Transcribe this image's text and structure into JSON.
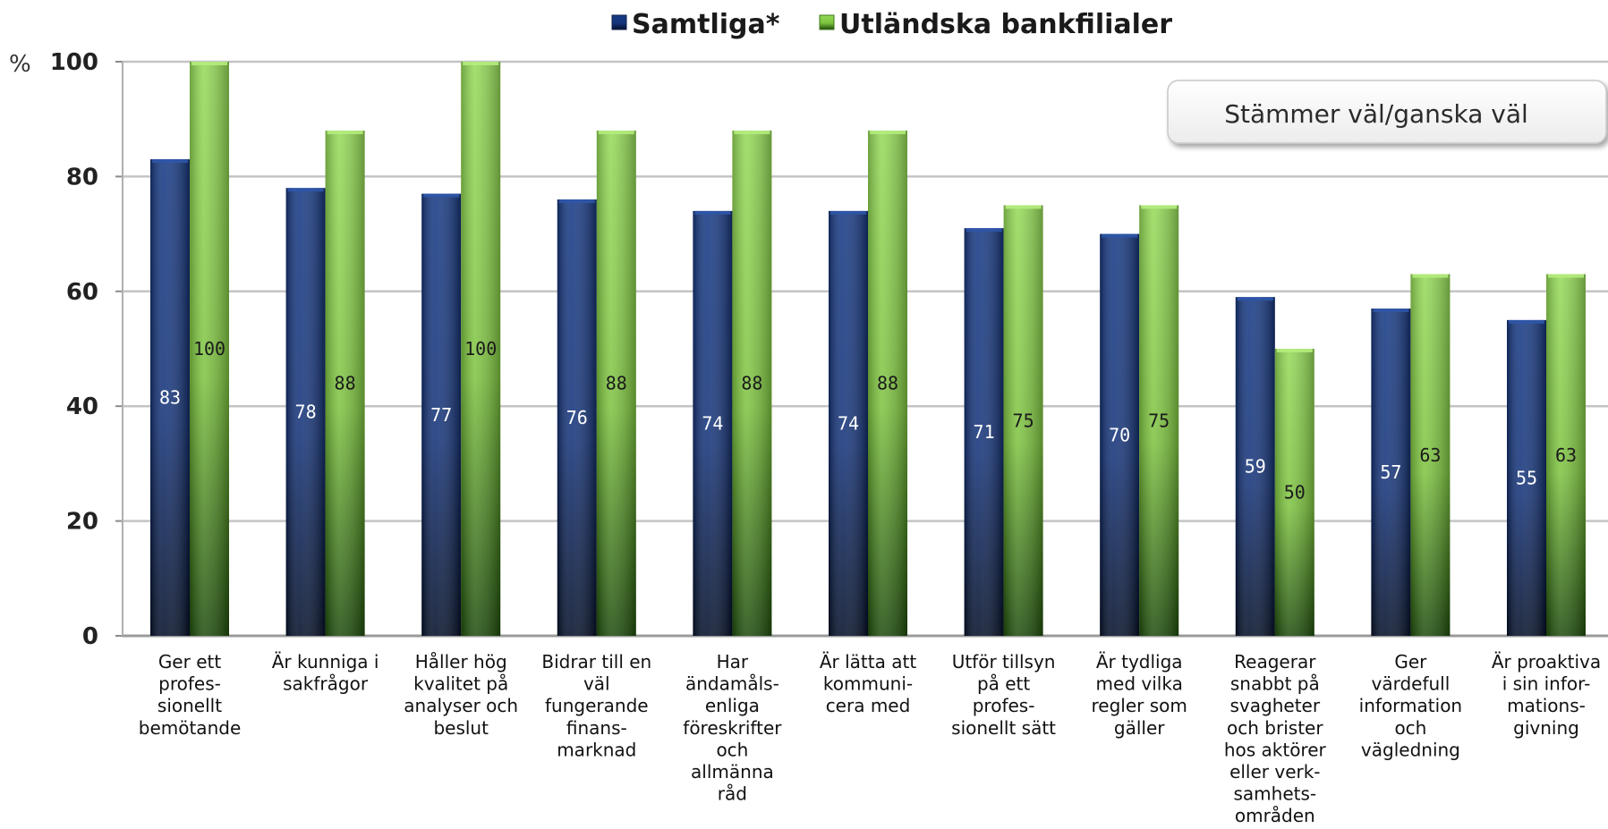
{
  "chart_data": {
    "type": "bar",
    "ylabel": "%",
    "ylim": [
      0,
      100
    ],
    "yticks": [
      "0",
      "20",
      "40",
      "60",
      "80",
      "100"
    ],
    "grid": true,
    "legend_position": "top-center",
    "annotation": "Stämmer väl/ganska väl",
    "categories": [
      "Ger ett profes-sionellt bemötande",
      "Är kunniga i sakfrågor",
      "Håller hög kvalitet på analyser och beslut",
      "Bidrar till en väl fungerande finans-marknad",
      "Har ändamåls-enliga föreskrifter och allmänna råd",
      "Är lätta att kommuni-cera med",
      "Utför tillsyn på ett profes-sionellt sätt",
      "Är tydliga med vilka regler som gäller",
      "Reagerar snabbt på svagheter och brister hos aktörer eller verk-samhets-områden",
      "Ger värdefull information och vägledning",
      "Är proaktiva i sin infor-mations-givning"
    ],
    "category_lines": [
      [
        "Ger ett",
        "profes-",
        "sionellt",
        "bemötande"
      ],
      [
        "Är kunniga i",
        "sakfrågor"
      ],
      [
        "Håller hög",
        "kvalitet på",
        "analyser och",
        "beslut"
      ],
      [
        "Bidrar till en",
        "väl",
        "fungerande",
        "finans-",
        "marknad"
      ],
      [
        "Har",
        "ändamåls-",
        "enliga",
        "föreskrifter",
        "och",
        "allmänna",
        "råd"
      ],
      [
        "Är lätta att",
        "kommuni-",
        "cera med"
      ],
      [
        "Utför tillsyn",
        "på ett",
        "profes-",
        "sionellt sätt"
      ],
      [
        "Är tydliga",
        "med vilka",
        "regler som",
        "gäller"
      ],
      [
        "Reagerar",
        "snabbt på",
        "svagheter",
        "och brister",
        "hos aktörer",
        "eller verk-",
        "samhets-",
        "områden"
      ],
      [
        "Ger",
        "värdefull",
        "information",
        "och",
        "vägledning"
      ],
      [
        "Är proaktiva",
        "i sin infor-",
        "mations-",
        "givning"
      ]
    ],
    "series": [
      {
        "name": "Samtliga*",
        "color": "#1d3f8a",
        "values": [
          83,
          78,
          77,
          76,
          74,
          74,
          71,
          70,
          59,
          57,
          55
        ]
      },
      {
        "name": "Utländska bankfilialer",
        "color": "#8fd14f",
        "values": [
          100,
          88,
          100,
          88,
          88,
          88,
          75,
          75,
          50,
          63,
          63
        ]
      }
    ]
  }
}
